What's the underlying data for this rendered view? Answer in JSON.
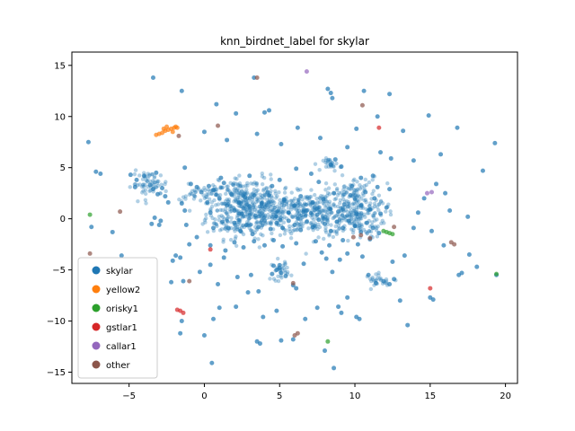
{
  "chart_data": {
    "type": "scatter",
    "title": "knn_birdnet_label for skylar",
    "xlabel": "",
    "ylabel": "",
    "xlim": [
      -8.8,
      20.8
    ],
    "ylim": [
      -16.1,
      16.3
    ],
    "xticks": [
      -5,
      0,
      5,
      10,
      15,
      20
    ],
    "yticks": [
      -15,
      -10,
      -5,
      0,
      5,
      10,
      15
    ],
    "grid": false,
    "legend_position": "lower-left",
    "series": [
      {
        "name": "skylar",
        "color": "#1f77b4"
      },
      {
        "name": "yellow2",
        "color": "#ff7f0e"
      },
      {
        "name": "orisky1",
        "color": "#2ca02c"
      },
      {
        "name": "gstlar1",
        "color": "#d62728"
      },
      {
        "name": "callar1",
        "color": "#9467bd"
      },
      {
        "name": "other",
        "color": "#8c564b"
      }
    ],
    "points": {
      "skylar": [
        [
          -3.4,
          13.8
        ],
        [
          -1.5,
          12.5
        ],
        [
          0.8,
          11.2
        ],
        [
          3.3,
          13.8
        ],
        [
          2.1,
          10.3
        ],
        [
          4.0,
          10.4
        ],
        [
          4.3,
          10.6
        ],
        [
          8.2,
          12.7
        ],
        [
          8.4,
          12.3
        ],
        [
          8.5,
          11.8
        ],
        [
          10.6,
          12.5
        ],
        [
          12.3,
          12.2
        ],
        [
          10.1,
          8.8
        ],
        [
          11.5,
          10.0
        ],
        [
          13.2,
          8.6
        ],
        [
          14.9,
          10.1
        ],
        [
          16.8,
          8.9
        ],
        [
          19.3,
          7.4
        ],
        [
          -7.7,
          7.5
        ],
        [
          -7.2,
          4.6
        ],
        [
          -6.9,
          4.4
        ],
        [
          -1.3,
          5.0
        ],
        [
          0.0,
          8.5
        ],
        [
          1.5,
          7.7
        ],
        [
          3.5,
          8.3
        ],
        [
          5.1,
          7.3
        ],
        [
          6.2,
          8.9
        ],
        [
          7.7,
          7.9
        ],
        [
          8.4,
          5.3
        ],
        [
          8.7,
          5.8
        ],
        [
          9.1,
          5.1
        ],
        [
          9.5,
          7.0
        ],
        [
          11.7,
          6.5
        ],
        [
          12.4,
          5.9
        ],
        [
          13.9,
          5.7
        ],
        [
          15.7,
          6.3
        ],
        [
          18.5,
          4.7
        ],
        [
          11.2,
          4.2
        ],
        [
          -4.9,
          4.3
        ],
        [
          -4.5,
          3.8
        ],
        [
          -4.0,
          4.2
        ],
        [
          -3.6,
          3.3
        ],
        [
          -3.2,
          4.5
        ],
        [
          -3.4,
          2.9
        ],
        [
          -4.6,
          3.1
        ],
        [
          -2.8,
          3.0
        ],
        [
          -2.6,
          2.2
        ],
        [
          -3.1,
          2.4
        ],
        [
          -3.5,
          -0.5
        ],
        [
          -3.0,
          -0.6
        ],
        [
          -1.5,
          1.5
        ],
        [
          -1.3,
          0.8
        ],
        [
          -0.5,
          3.1
        ],
        [
          -0.2,
          2.6
        ],
        [
          0.3,
          3.2
        ],
        [
          0.6,
          2.8
        ],
        [
          1.1,
          4.0
        ],
        [
          1.3,
          3.5
        ],
        [
          1.0,
          2.0
        ],
        [
          1.5,
          1.3
        ],
        [
          2.0,
          0.8
        ],
        [
          2.5,
          0.5
        ],
        [
          2.3,
          1.6
        ],
        [
          1.8,
          2.4
        ],
        [
          2.7,
          2.1
        ],
        [
          3.0,
          1.2
        ],
        [
          3.4,
          0.3
        ],
        [
          3.8,
          1.5
        ],
        [
          4.2,
          2.6
        ],
        [
          4.5,
          3.2
        ],
        [
          5.0,
          3.8
        ],
        [
          5.3,
          1.9
        ],
        [
          5.6,
          0.6
        ],
        [
          6.0,
          1.3
        ],
        [
          6.4,
          2.2
        ],
        [
          6.8,
          0.8
        ],
        [
          7.2,
          1.6
        ],
        [
          7.5,
          0.4
        ],
        [
          7.9,
          1.9
        ],
        [
          8.3,
          1.0
        ],
        [
          8.6,
          2.5
        ],
        [
          8.9,
          0.7
        ],
        [
          9.3,
          1.4
        ],
        [
          9.7,
          2.3
        ],
        [
          10.1,
          0.5
        ],
        [
          10.4,
          1.3
        ],
        [
          10.7,
          2.6
        ],
        [
          11.0,
          0.9
        ],
        [
          11.3,
          2.0
        ],
        [
          11.7,
          0.5
        ],
        [
          12.1,
          1.1
        ],
        [
          1.2,
          -0.3
        ],
        [
          1.6,
          -0.9
        ],
        [
          2.0,
          -0.4
        ],
        [
          2.4,
          -1.2
        ],
        [
          2.8,
          -0.6
        ],
        [
          3.2,
          -1.5
        ],
        [
          3.6,
          -0.8
        ],
        [
          4.0,
          -0.2
        ],
        [
          4.4,
          -1.0
        ],
        [
          4.8,
          -0.4
        ],
        [
          5.2,
          -0.9
        ],
        [
          5.6,
          -0.2
        ],
        [
          6.0,
          -0.6
        ],
        [
          6.4,
          -1.1
        ],
        [
          6.8,
          -0.3
        ],
        [
          7.2,
          -0.8
        ],
        [
          7.6,
          -0.1
        ],
        [
          8.0,
          -0.5
        ],
        [
          8.4,
          -1.2
        ],
        [
          8.8,
          -0.3
        ],
        [
          9.2,
          -0.9
        ],
        [
          9.6,
          -0.2
        ],
        [
          10.0,
          -0.7
        ],
        [
          10.4,
          -1.3
        ],
        [
          10.8,
          -0.4
        ],
        [
          11.2,
          -0.9
        ],
        [
          11.6,
          -1.4
        ],
        [
          2.0,
          -2.3
        ],
        [
          2.6,
          -2.8
        ],
        [
          3.3,
          -2.2
        ],
        [
          4.0,
          -2.6
        ],
        [
          4.6,
          -2.1
        ],
        [
          5.2,
          -2.7
        ],
        [
          6.1,
          -2.4
        ],
        [
          7.4,
          -2.2
        ],
        [
          8.3,
          -2.6
        ],
        [
          9.2,
          -2.1
        ],
        [
          10.2,
          -2.5
        ],
        [
          11.0,
          -2.0
        ],
        [
          1.4,
          -3.1
        ],
        [
          0.4,
          -2.6
        ],
        [
          -0.5,
          -1.8
        ],
        [
          -1.2,
          -0.6
        ],
        [
          -1.0,
          -2.5
        ],
        [
          -1.6,
          -3.8
        ],
        [
          -1.9,
          -3.6
        ],
        [
          -2.1,
          -4.1
        ],
        [
          -1.4,
          -6.1
        ],
        [
          -2.2,
          -6.2
        ],
        [
          -0.3,
          -5.2
        ],
        [
          0.4,
          -4.5
        ],
        [
          0.9,
          -6.4
        ],
        [
          1.3,
          -3.8
        ],
        [
          2.2,
          -5.7
        ],
        [
          3.1,
          -5.5
        ],
        [
          2.9,
          -7.2
        ],
        [
          3.6,
          -7.1
        ],
        [
          2.1,
          -8.6
        ],
        [
          1.0,
          -8.7
        ],
        [
          0.6,
          -9.8
        ],
        [
          -1.5,
          -10.0
        ],
        [
          -1.6,
          -11.2
        ],
        [
          0.0,
          -11.4
        ],
        [
          0.5,
          -14.1
        ],
        [
          3.5,
          -12.0
        ],
        [
          3.7,
          -12.2
        ],
        [
          3.9,
          -9.6
        ],
        [
          4.8,
          -9.0
        ],
        [
          5.1,
          -11.9
        ],
        [
          5.9,
          -11.8
        ],
        [
          6.7,
          -9.8
        ],
        [
          7.5,
          -8.7
        ],
        [
          8.0,
          -12.9
        ],
        [
          8.6,
          -14.6
        ],
        [
          8.9,
          -8.6
        ],
        [
          9.1,
          -9.2
        ],
        [
          9.5,
          -7.7
        ],
        [
          10.1,
          -9.6
        ],
        [
          10.3,
          -9.8
        ],
        [
          11.4,
          -6.3
        ],
        [
          11.9,
          -6.1
        ],
        [
          12.3,
          -6.4
        ],
        [
          12.6,
          -5.9
        ],
        [
          10.9,
          -5.5
        ],
        [
          4.6,
          -4.6
        ],
        [
          4.8,
          -5.0
        ],
        [
          5.1,
          -5.3
        ],
        [
          5.4,
          -5.6
        ],
        [
          4.5,
          -5.4
        ],
        [
          5.0,
          -4.8
        ],
        [
          5.9,
          -6.5
        ],
        [
          6.1,
          -6.8
        ],
        [
          6.6,
          -4.4
        ],
        [
          7.8,
          -3.3
        ],
        [
          8.1,
          -3.9
        ],
        [
          8.5,
          -5.2
        ],
        [
          9.0,
          -4.0
        ],
        [
          9.5,
          -3.4
        ],
        [
          10.5,
          -3.7
        ],
        [
          12.5,
          -4.2
        ],
        [
          13.3,
          -3.6
        ],
        [
          13.9,
          -0.9
        ],
        [
          14.2,
          0.6
        ],
        [
          15.1,
          -1.2
        ],
        [
          15.9,
          -2.6
        ],
        [
          16.3,
          0.8
        ],
        [
          17.5,
          0.2
        ],
        [
          14.6,
          2.0
        ],
        [
          16.0,
          2.5
        ],
        [
          15.4,
          3.4
        ],
        [
          17.6,
          -3.5
        ],
        [
          16.9,
          -5.5
        ],
        [
          17.1,
          -5.3
        ],
        [
          18.1,
          -4.7
        ],
        [
          19.4,
          -5.5
        ],
        [
          15.0,
          -7.7
        ],
        [
          15.2,
          -7.9
        ],
        [
          13.5,
          -10.4
        ],
        [
          13.0,
          -8.0
        ],
        [
          -7.5,
          -0.8
        ],
        [
          -6.1,
          -1.3
        ],
        [
          -5.5,
          -3.6
        ],
        [
          -3.3,
          0.1
        ],
        [
          -2.9,
          -0.2
        ],
        [
          -2.4,
          1.6
        ],
        [
          -0.9,
          3.4
        ],
        [
          0.4,
          0.6
        ],
        [
          0.6,
          -0.9
        ],
        [
          0.2,
          1.6
        ],
        [
          3.0,
          4.2
        ],
        [
          6.1,
          4.9
        ],
        [
          7.1,
          4.4
        ],
        [
          7.6,
          3.6
        ],
        [
          9.8,
          3.2
        ],
        [
          10.4,
          4.0
        ],
        [
          11.5,
          3.1
        ],
        [
          12.3,
          2.9
        ]
      ],
      "yellow2": [
        [
          -3.0,
          8.3
        ],
        [
          -2.8,
          8.4
        ],
        [
          -2.6,
          8.6
        ],
        [
          -2.4,
          8.7
        ],
        [
          -2.2,
          8.8
        ],
        [
          -2.0,
          8.9
        ],
        [
          -1.9,
          9.0
        ],
        [
          -2.7,
          8.8
        ],
        [
          -2.5,
          9.0
        ],
        [
          -2.1,
          8.5
        ],
        [
          -3.2,
          8.2
        ],
        [
          -1.8,
          8.9
        ]
      ],
      "orisky1": [
        [
          -7.6,
          0.4
        ],
        [
          11.9,
          -1.2
        ],
        [
          12.1,
          -1.3
        ],
        [
          12.3,
          -1.4
        ],
        [
          12.5,
          -1.5
        ],
        [
          8.2,
          -12.0
        ],
        [
          19.4,
          -5.4
        ]
      ],
      "gstlar1": [
        [
          -1.8,
          -8.9
        ],
        [
          -1.6,
          -9.0
        ],
        [
          -1.4,
          -9.2
        ],
        [
          11.6,
          8.9
        ],
        [
          15.0,
          -6.8
        ],
        [
          0.4,
          -3.0
        ]
      ],
      "callar1": [
        [
          14.8,
          2.5
        ],
        [
          15.1,
          2.6
        ],
        [
          6.8,
          14.4
        ]
      ],
      "other": [
        [
          -7.6,
          -3.4
        ],
        [
          -5.6,
          0.7
        ],
        [
          -1.7,
          8.1
        ],
        [
          0.9,
          9.1
        ],
        [
          3.5,
          13.8
        ],
        [
          10.5,
          11.1
        ],
        [
          -1.0,
          -6.1
        ],
        [
          6.0,
          -11.4
        ],
        [
          6.2,
          -11.2
        ],
        [
          10.4,
          -1.6
        ],
        [
          11.0,
          -1.9
        ],
        [
          16.4,
          -2.3
        ],
        [
          16.6,
          -2.5
        ],
        [
          12.6,
          -0.8
        ],
        [
          5.9,
          -6.3
        ],
        [
          9.9,
          -1.8
        ]
      ]
    }
  }
}
